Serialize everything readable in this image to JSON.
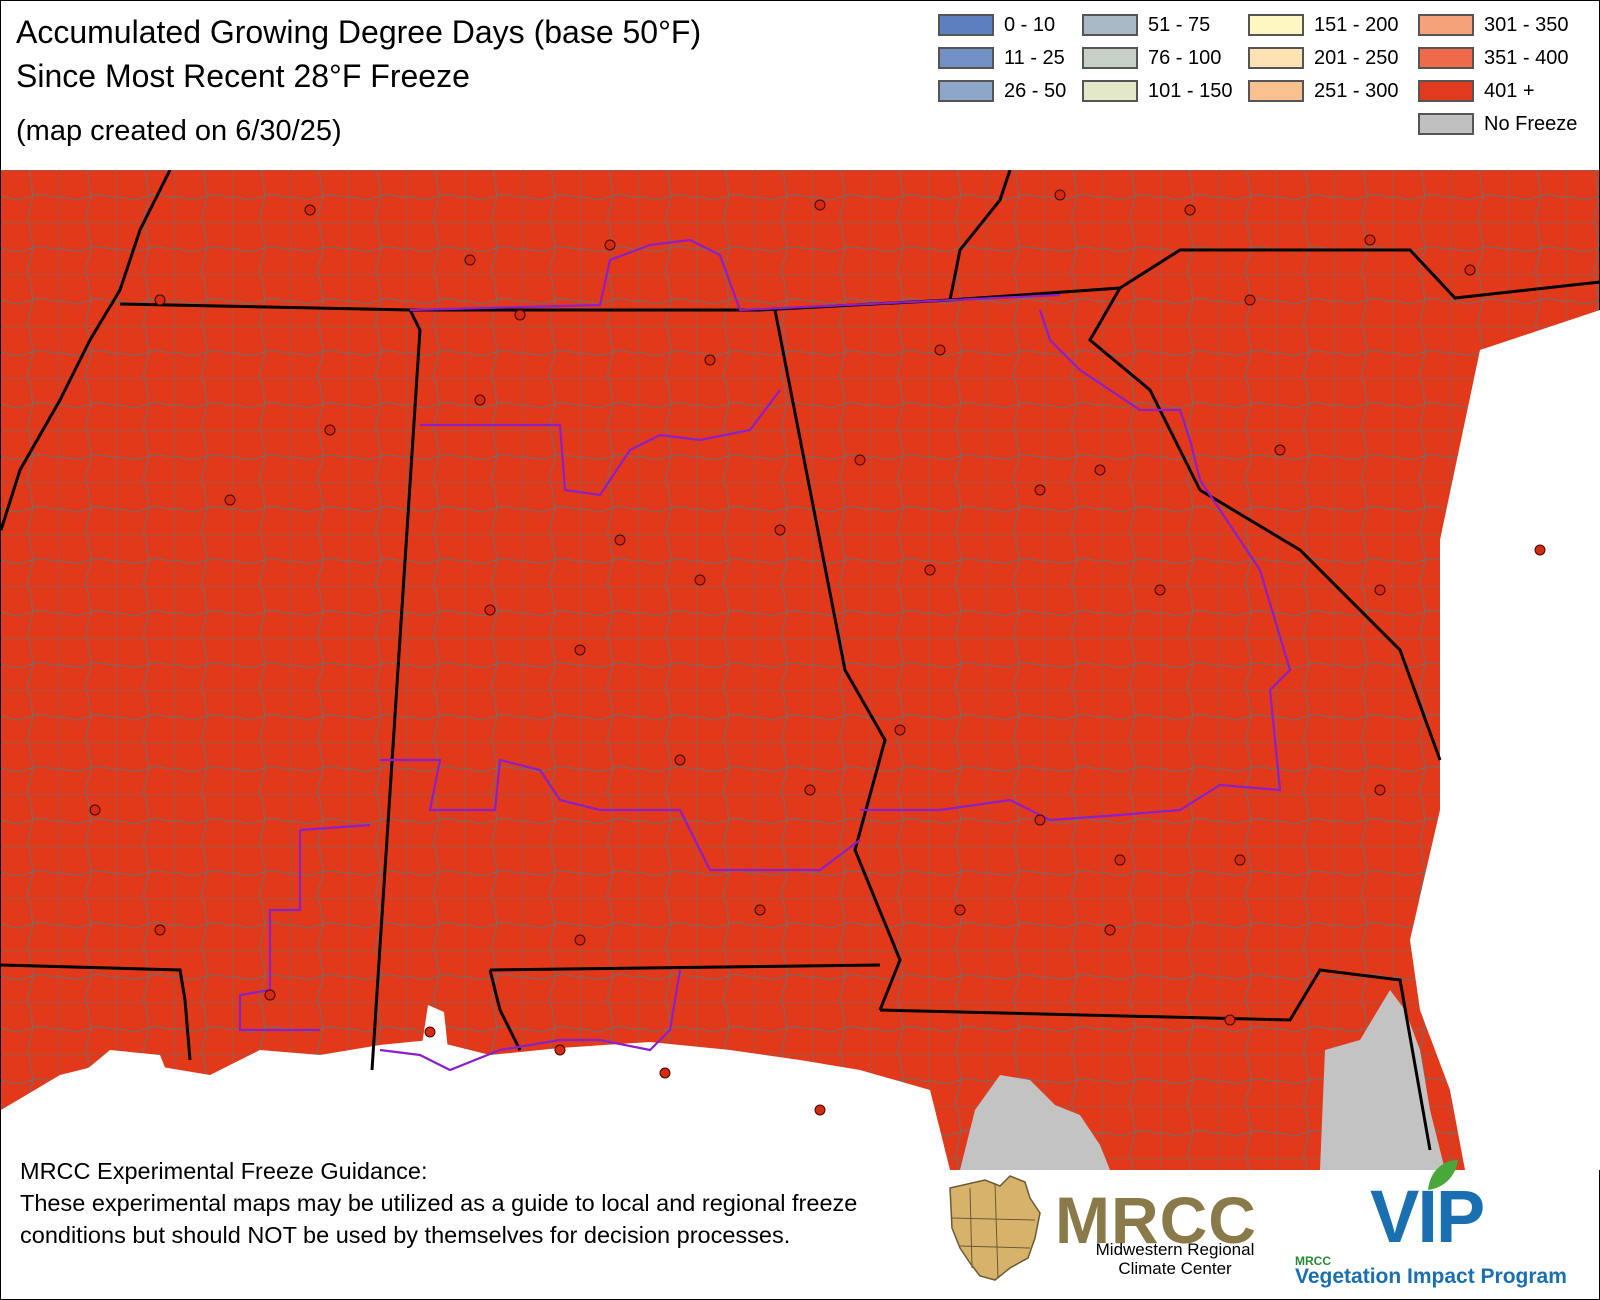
{
  "header": {
    "title_line1": "Accumulated Growing Degree Days (base 50°F)",
    "title_line2": "Since Most Recent 28°F Freeze",
    "created_note": "(map created on 6/30/25)"
  },
  "legend": {
    "items": [
      {
        "label": "0 - 10",
        "color": "#5b7fbf"
      },
      {
        "label": "11 - 25",
        "color": "#7290c4"
      },
      {
        "label": "26 - 50",
        "color": "#8ea6c8"
      },
      {
        "label": "51 - 75",
        "color": "#a9b9c6"
      },
      {
        "label": "76 - 100",
        "color": "#c6d0c6"
      },
      {
        "label": "101 - 150",
        "color": "#e3e8c8"
      },
      {
        "label": "151 - 200",
        "color": "#fff7c2"
      },
      {
        "label": "201 - 250",
        "color": "#fde2b4"
      },
      {
        "label": "251 - 300",
        "color": "#f9c190"
      },
      {
        "label": "301 - 350",
        "color": "#f5a27a"
      },
      {
        "label": "351 - 400",
        "color": "#ef6a4a"
      },
      {
        "label": "401 +",
        "color": "#e23a1e"
      },
      {
        "label": "No Freeze",
        "color": "#c0c0c0"
      }
    ]
  },
  "map": {
    "dominant_category": "401 +",
    "fill_color": "#e3391b",
    "no_freeze_color": "#c3c3c3",
    "county_line_color": "#6e6e6e",
    "state_line_color": "#000000",
    "cwa_line_color": "#8b1fc8",
    "station_dot_color": "#d62a12"
  },
  "disclaimer": {
    "heading": "MRCC Experimental Freeze Guidance:",
    "body": "These experimental maps may be utilized as a guide to local and regional freeze conditions but should NOT be used by themselves for decision processes."
  },
  "logos": {
    "mrcc_word": "MRCC",
    "mrcc_sub_line1": "Midwestern Regional",
    "mrcc_sub_line2": "Climate Center",
    "vip_word": "VIP",
    "vip_small": "MRCC",
    "vip_sub": "Vegetation Impact Program"
  }
}
